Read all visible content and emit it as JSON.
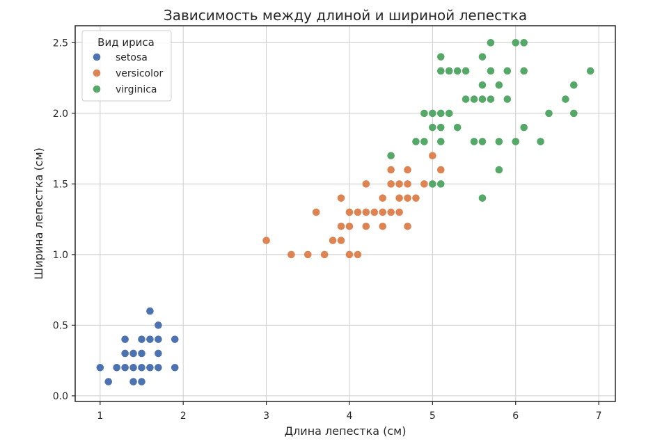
{
  "chart_data": {
    "type": "scatter",
    "title": "Зависимость между длиной и шириной лепестка",
    "xlabel": "Длина лепестка (см)",
    "ylabel": "Ширина лепестка (см)",
    "xlim": [
      0.7,
      7.2
    ],
    "ylim": [
      -0.04,
      2.62
    ],
    "xticks": [
      1,
      2,
      3,
      4,
      5,
      6,
      7
    ],
    "yticks": [
      0.0,
      0.5,
      1.0,
      1.5,
      2.0,
      2.5
    ],
    "xtick_labels": [
      "1",
      "2",
      "3",
      "4",
      "5",
      "6",
      "7"
    ],
    "ytick_labels": [
      "0.0",
      "0.5",
      "1.0",
      "1.5",
      "2.0",
      "2.5"
    ],
    "grid": true,
    "legend": {
      "title": "Вид ириса",
      "placement": "top-left"
    },
    "series": [
      {
        "name": "setosa",
        "color": "#4c72b0",
        "points": [
          [
            1.0,
            0.2
          ],
          [
            1.1,
            0.1
          ],
          [
            1.2,
            0.2
          ],
          [
            1.3,
            0.2
          ],
          [
            1.3,
            0.3
          ],
          [
            1.3,
            0.4
          ],
          [
            1.4,
            0.1
          ],
          [
            1.4,
            0.2
          ],
          [
            1.4,
            0.3
          ],
          [
            1.5,
            0.1
          ],
          [
            1.5,
            0.2
          ],
          [
            1.5,
            0.3
          ],
          [
            1.5,
            0.4
          ],
          [
            1.6,
            0.2
          ],
          [
            1.6,
            0.4
          ],
          [
            1.6,
            0.6
          ],
          [
            1.7,
            0.2
          ],
          [
            1.7,
            0.3
          ],
          [
            1.7,
            0.4
          ],
          [
            1.7,
            0.5
          ],
          [
            1.9,
            0.2
          ],
          [
            1.9,
            0.4
          ]
        ]
      },
      {
        "name": "versicolor",
        "color": "#dd8452",
        "points": [
          [
            3.0,
            1.1
          ],
          [
            3.3,
            1.0
          ],
          [
            3.5,
            1.0
          ],
          [
            3.6,
            1.3
          ],
          [
            3.7,
            1.0
          ],
          [
            3.8,
            1.1
          ],
          [
            3.9,
            1.1
          ],
          [
            3.9,
            1.2
          ],
          [
            3.9,
            1.4
          ],
          [
            4.0,
            1.0
          ],
          [
            4.0,
            1.2
          ],
          [
            4.0,
            1.3
          ],
          [
            4.1,
            1.0
          ],
          [
            4.1,
            1.3
          ],
          [
            4.2,
            1.2
          ],
          [
            4.2,
            1.3
          ],
          [
            4.2,
            1.5
          ],
          [
            4.3,
            1.3
          ],
          [
            4.4,
            1.2
          ],
          [
            4.4,
            1.3
          ],
          [
            4.4,
            1.4
          ],
          [
            4.5,
            1.3
          ],
          [
            4.5,
            1.5
          ],
          [
            4.5,
            1.6
          ],
          [
            4.6,
            1.3
          ],
          [
            4.6,
            1.4
          ],
          [
            4.6,
            1.5
          ],
          [
            4.7,
            1.2
          ],
          [
            4.7,
            1.4
          ],
          [
            4.7,
            1.5
          ],
          [
            4.7,
            1.6
          ],
          [
            4.8,
            1.4
          ],
          [
            4.9,
            1.5
          ],
          [
            5.0,
            1.7
          ],
          [
            5.1,
            1.6
          ]
        ]
      },
      {
        "name": "virginica",
        "color": "#55a868",
        "points": [
          [
            4.5,
            1.7
          ],
          [
            4.8,
            1.8
          ],
          [
            4.9,
            1.8
          ],
          [
            4.9,
            2.0
          ],
          [
            5.0,
            1.5
          ],
          [
            5.0,
            1.9
          ],
          [
            5.0,
            2.0
          ],
          [
            5.1,
            1.5
          ],
          [
            5.1,
            1.8
          ],
          [
            5.1,
            1.9
          ],
          [
            5.1,
            2.0
          ],
          [
            5.1,
            2.3
          ],
          [
            5.1,
            2.4
          ],
          [
            5.2,
            2.0
          ],
          [
            5.2,
            2.3
          ],
          [
            5.3,
            1.9
          ],
          [
            5.3,
            2.3
          ],
          [
            5.4,
            2.1
          ],
          [
            5.4,
            2.3
          ],
          [
            5.5,
            1.8
          ],
          [
            5.5,
            2.1
          ],
          [
            5.6,
            1.4
          ],
          [
            5.6,
            1.8
          ],
          [
            5.6,
            2.1
          ],
          [
            5.6,
            2.2
          ],
          [
            5.6,
            2.4
          ],
          [
            5.7,
            2.1
          ],
          [
            5.7,
            2.3
          ],
          [
            5.7,
            2.5
          ],
          [
            5.8,
            1.6
          ],
          [
            5.8,
            1.8
          ],
          [
            5.8,
            2.2
          ],
          [
            5.9,
            2.1
          ],
          [
            5.9,
            2.3
          ],
          [
            6.0,
            1.8
          ],
          [
            6.0,
            2.5
          ],
          [
            6.1,
            1.9
          ],
          [
            6.1,
            2.3
          ],
          [
            6.1,
            2.5
          ],
          [
            6.3,
            1.8
          ],
          [
            6.4,
            2.0
          ],
          [
            6.6,
            2.1
          ],
          [
            6.7,
            2.0
          ],
          [
            6.7,
            2.2
          ],
          [
            6.9,
            2.3
          ]
        ]
      }
    ]
  }
}
